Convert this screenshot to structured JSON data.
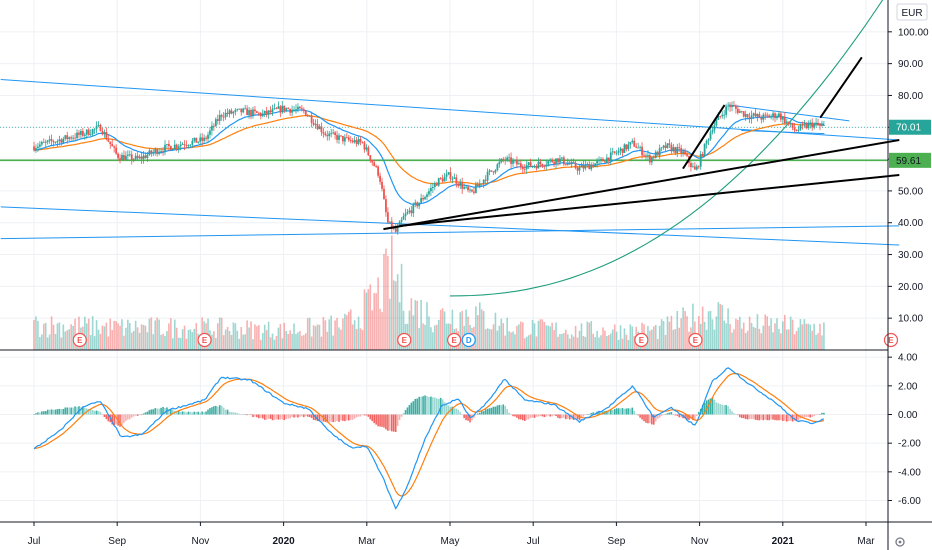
{
  "currency": "EUR",
  "settings_icon": "gear-icon",
  "colors": {
    "up": "#26a69a",
    "down": "#ef5350",
    "ema_fast": "#2196f3",
    "ema_slow": "#ff7f0e",
    "support": "#4caf50",
    "trend": "#2196f3",
    "curve": "#1e9e7d",
    "black_lines": "#000000",
    "grid": "#eef0f4"
  },
  "x_axis": {
    "labels": [
      "Jul",
      "Sep",
      "Nov",
      "2020",
      "Mar",
      "May",
      "Jul",
      "Sep",
      "Nov",
      "2021",
      "Mar"
    ],
    "bold_labels": [
      "2020",
      "2021"
    ],
    "months_index": [
      0,
      2,
      4,
      6,
      8,
      10,
      12,
      14,
      16,
      18,
      20
    ]
  },
  "price_axis": {
    "ticks": [
      "100.00",
      "90.00",
      "80.00",
      "70.00",
      "60.00",
      "50.00",
      "40.00",
      "30.00",
      "20.00",
      "10.00"
    ],
    "min": 0,
    "max": 110
  },
  "price_tags": {
    "last": "70.01",
    "support": "59.61"
  },
  "macd_axis": {
    "ticks": [
      "4.00",
      "2.00",
      "0.00",
      "-2.00",
      "-4.00",
      "-6.00"
    ],
    "min": -7.5,
    "max": 4.5
  },
  "events": [
    {
      "label": "E",
      "month": 1.1
    },
    {
      "label": "E",
      "month": 4.1
    },
    {
      "label": "E",
      "month": 8.9
    },
    {
      "label": "E",
      "month": 10.1
    },
    {
      "label": "D",
      "month": 10.45
    },
    {
      "label": "E",
      "month": 14.6
    },
    {
      "label": "E",
      "month": 15.9
    },
    {
      "label": "E",
      "month": 20.6
    }
  ],
  "chart_data": {
    "type": "candlestick",
    "price_keypoints": [
      {
        "m": 0.0,
        "p": 64
      },
      {
        "m": 0.6,
        "p": 66
      },
      {
        "m": 1.2,
        "p": 68
      },
      {
        "m": 1.6,
        "p": 70
      },
      {
        "m": 2.0,
        "p": 61
      },
      {
        "m": 2.5,
        "p": 60
      },
      {
        "m": 3.0,
        "p": 63
      },
      {
        "m": 3.6,
        "p": 65
      },
      {
        "m": 4.1,
        "p": 66
      },
      {
        "m": 4.5,
        "p": 74
      },
      {
        "m": 5.0,
        "p": 75
      },
      {
        "m": 5.5,
        "p": 74
      },
      {
        "m": 6.0,
        "p": 76
      },
      {
        "m": 6.5,
        "p": 75
      },
      {
        "m": 7.0,
        "p": 68
      },
      {
        "m": 7.5,
        "p": 66
      },
      {
        "m": 7.9,
        "p": 65
      },
      {
        "m": 8.3,
        "p": 55
      },
      {
        "m": 8.5,
        "p": 40
      },
      {
        "m": 8.7,
        "p": 37
      },
      {
        "m": 8.9,
        "p": 42
      },
      {
        "m": 9.3,
        "p": 47
      },
      {
        "m": 9.7,
        "p": 53
      },
      {
        "m": 10.0,
        "p": 55
      },
      {
        "m": 10.5,
        "p": 49
      },
      {
        "m": 10.9,
        "p": 55
      },
      {
        "m": 11.3,
        "p": 60
      },
      {
        "m": 11.7,
        "p": 58
      },
      {
        "m": 12.0,
        "p": 58
      },
      {
        "m": 12.6,
        "p": 60
      },
      {
        "m": 13.1,
        "p": 57
      },
      {
        "m": 13.6,
        "p": 59
      },
      {
        "m": 14.0,
        "p": 62
      },
      {
        "m": 14.4,
        "p": 65
      },
      {
        "m": 14.8,
        "p": 60
      },
      {
        "m": 15.2,
        "p": 64
      },
      {
        "m": 15.6,
        "p": 62
      },
      {
        "m": 15.9,
        "p": 56
      },
      {
        "m": 16.3,
        "p": 70
      },
      {
        "m": 16.7,
        "p": 77
      },
      {
        "m": 17.1,
        "p": 74
      },
      {
        "m": 17.5,
        "p": 73
      },
      {
        "m": 17.9,
        "p": 74
      },
      {
        "m": 18.3,
        "p": 69
      },
      {
        "m": 18.7,
        "p": 71
      },
      {
        "m": 19.0,
        "p": 70
      }
    ],
    "volume_keypoints": [
      {
        "m": 0.0,
        "v": 9
      },
      {
        "m": 2.0,
        "v": 8
      },
      {
        "m": 4.0,
        "v": 8
      },
      {
        "m": 6.0,
        "v": 7
      },
      {
        "m": 7.5,
        "v": 9
      },
      {
        "m": 8.2,
        "v": 18
      },
      {
        "m": 8.6,
        "v": 28
      },
      {
        "m": 9.0,
        "v": 16
      },
      {
        "m": 9.6,
        "v": 12
      },
      {
        "m": 10.5,
        "v": 13
      },
      {
        "m": 11.5,
        "v": 8
      },
      {
        "m": 13.0,
        "v": 7
      },
      {
        "m": 15.0,
        "v": 7
      },
      {
        "m": 16.3,
        "v": 14
      },
      {
        "m": 17.0,
        "v": 9
      },
      {
        "m": 19.0,
        "v": 8
      }
    ],
    "macd_keypoints": [
      {
        "m": 0.0,
        "v": -2.4
      },
      {
        "m": 0.6,
        "v": -1.2
      },
      {
        "m": 1.2,
        "v": 0.6
      },
      {
        "m": 1.6,
        "v": 0.9
      },
      {
        "m": 2.1,
        "v": -1.6
      },
      {
        "m": 2.6,
        "v": -1.4
      },
      {
        "m": 3.2,
        "v": 0.3
      },
      {
        "m": 3.6,
        "v": 0.6
      },
      {
        "m": 4.1,
        "v": 1.0
      },
      {
        "m": 4.5,
        "v": 2.6
      },
      {
        "m": 5.2,
        "v": 2.4
      },
      {
        "m": 6.0,
        "v": 0.8
      },
      {
        "m": 6.6,
        "v": 0.4
      },
      {
        "m": 7.1,
        "v": -1.2
      },
      {
        "m": 7.6,
        "v": -2.3
      },
      {
        "m": 8.0,
        "v": -2.2
      },
      {
        "m": 8.4,
        "v": -4.5
      },
      {
        "m": 8.7,
        "v": -6.6
      },
      {
        "m": 9.0,
        "v": -4.8
      },
      {
        "m": 9.4,
        "v": -1.7
      },
      {
        "m": 9.8,
        "v": 0.6
      },
      {
        "m": 10.2,
        "v": 1.1
      },
      {
        "m": 10.5,
        "v": -0.3
      },
      {
        "m": 11.0,
        "v": 1.2
      },
      {
        "m": 11.3,
        "v": 2.5
      },
      {
        "m": 11.8,
        "v": 1.0
      },
      {
        "m": 12.5,
        "v": 0.7
      },
      {
        "m": 13.1,
        "v": -0.5
      },
      {
        "m": 13.8,
        "v": 0.5
      },
      {
        "m": 14.4,
        "v": 2.0
      },
      {
        "m": 14.9,
        "v": -0.2
      },
      {
        "m": 15.3,
        "v": 0.5
      },
      {
        "m": 15.9,
        "v": -0.8
      },
      {
        "m": 16.3,
        "v": 2.3
      },
      {
        "m": 16.7,
        "v": 3.3
      },
      {
        "m": 17.2,
        "v": 2.1
      },
      {
        "m": 17.8,
        "v": 0.9
      },
      {
        "m": 18.3,
        "v": -0.4
      },
      {
        "m": 18.7,
        "v": -0.6
      },
      {
        "m": 19.0,
        "v": -0.3
      }
    ],
    "ylim_price": [
      0,
      110
    ],
    "ylim_macd": [
      -7.5,
      4.5
    ],
    "support_level": 59.61,
    "last_price": 70.01
  },
  "drawings": {
    "blue_lines": [
      {
        "m1": -0.8,
        "p1": 85,
        "m2": 20.8,
        "p2": 66
      },
      {
        "m1": -0.8,
        "p1": 45,
        "m2": 20.8,
        "p2": 33
      },
      {
        "m1": -0.8,
        "p1": 35,
        "m2": 20.8,
        "p2": 39
      },
      {
        "m1": 16.7,
        "p1": 77,
        "m2": 19.6,
        "p2": 72
      },
      {
        "m1": 17.0,
        "p1": 69,
        "m2": 19.0,
        "p2": 68
      }
    ],
    "black_lines": [
      {
        "m1": 8.4,
        "p1": 38,
        "m2": 20.8,
        "p2": 66
      },
      {
        "m1": 8.8,
        "p1": 39,
        "m2": 20.8,
        "p2": 55
      },
      {
        "m1": 15.6,
        "p1": 57,
        "m2": 16.6,
        "p2": 77
      },
      {
        "m1": 18.9,
        "p1": 73,
        "m2": 19.9,
        "p2": 92
      }
    ],
    "curve": {
      "m_start": 10.0,
      "p_start": 17,
      "m_end": 20.5,
      "p_end": 112
    }
  }
}
